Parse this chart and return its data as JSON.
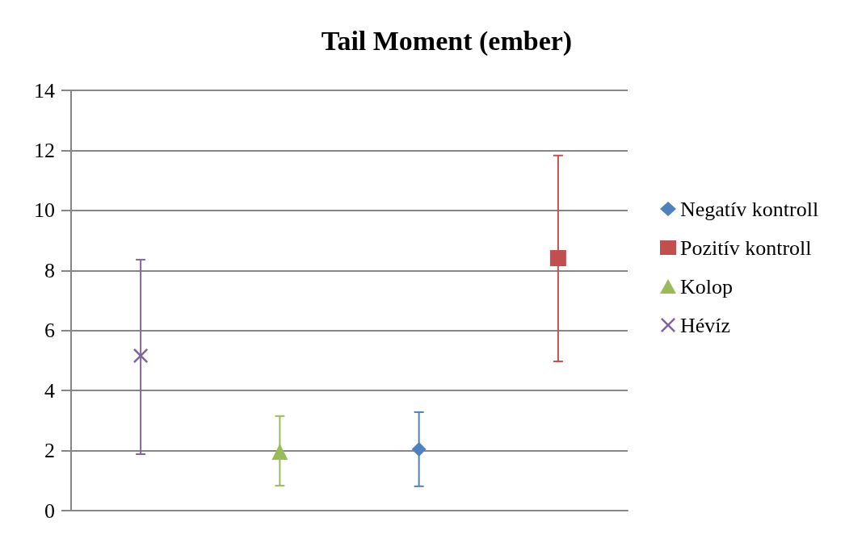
{
  "chart_data": {
    "type": "scatter",
    "title": "Tail Moment (ember)",
    "categories": [
      null,
      null,
      null,
      null
    ],
    "series": [
      {
        "name": "Negatív kontroll",
        "color": "#4f81bd",
        "marker": "diamond",
        "values": [
          null,
          null,
          2.04,
          null
        ],
        "errors": [
          null,
          null,
          [
            0.81,
            3.28
          ],
          null
        ]
      },
      {
        "name": "Pozitív kontroll",
        "color": "#c0504d",
        "marker": "square",
        "values": [
          null,
          null,
          null,
          8.41
        ],
        "errors": [
          null,
          null,
          null,
          [
            4.97,
            11.83
          ]
        ]
      },
      {
        "name": "Kolop",
        "color": "#9bbb59",
        "marker": "triangle",
        "values": [
          null,
          1.96,
          null,
          null
        ],
        "errors": [
          null,
          [
            0.83,
            3.15
          ],
          null,
          null
        ]
      },
      {
        "name": "Hévíz",
        "color": "#8064a2",
        "marker": "cross",
        "values": [
          5.16,
          null,
          null,
          null
        ],
        "errors": [
          [
            1.88,
            8.36
          ],
          null,
          null,
          null
        ]
      }
    ],
    "ylim": [
      0,
      14
    ],
    "yticks": [
      0,
      2,
      4,
      6,
      8,
      10,
      12,
      14
    ],
    "grid": "y",
    "legend": "right",
    "tick_labels": "y"
  }
}
